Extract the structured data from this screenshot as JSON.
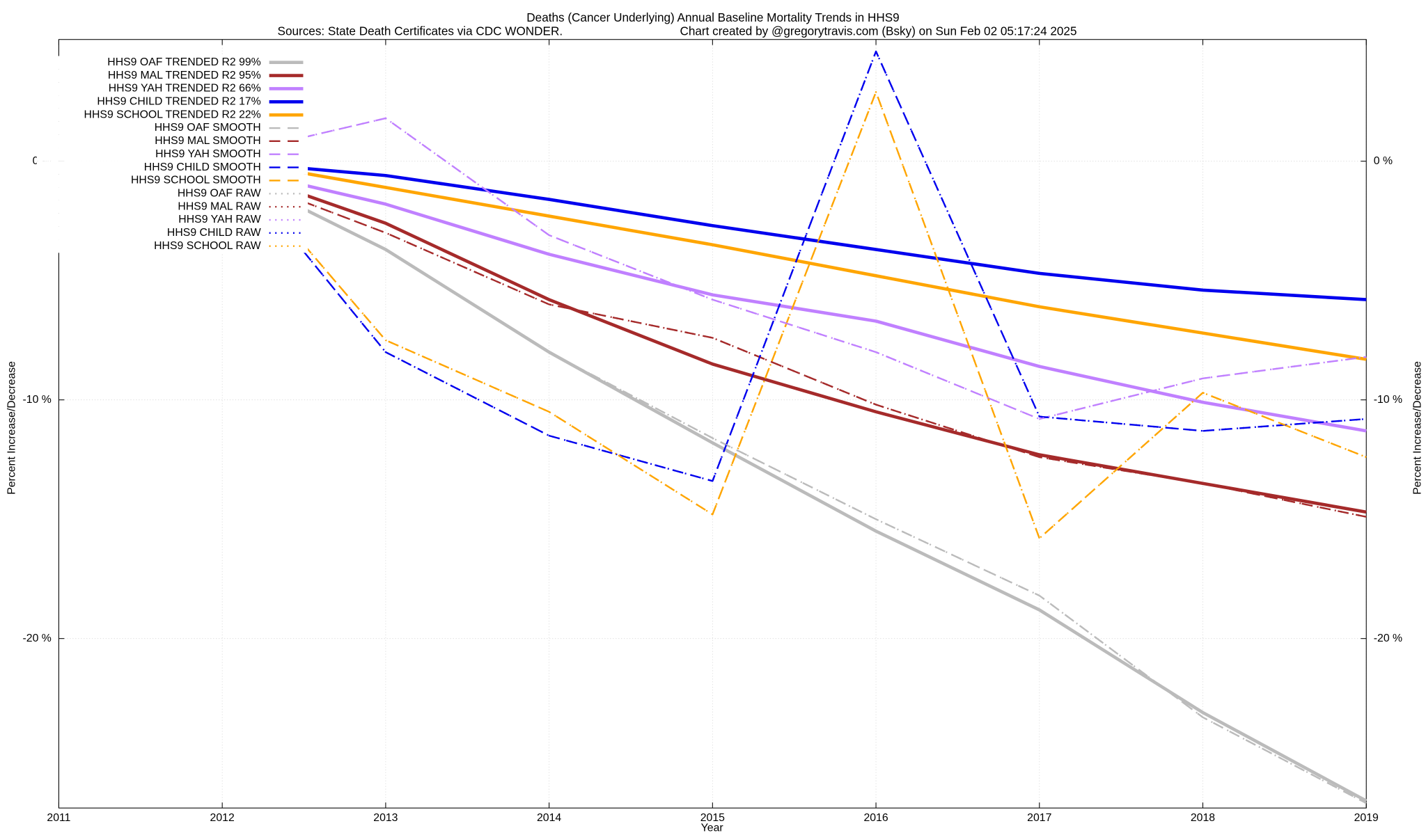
{
  "chart_data": {
    "type": "line",
    "title": "Deaths (Cancer Underlying)  Annual Baseline Mortality Trends in HHS9",
    "subtitle": [
      "Sources: State Death Certificates via CDC WONDER.",
      "Chart created by @gregorytravis.com (Bsky) on Sun Feb 02 05:17:24 2025"
    ],
    "x_label": "Year",
    "y_label": "Percent Increase/Decrease",
    "x": [
      2012.5,
      2013,
      2014,
      2015,
      2016,
      2017,
      2018,
      2019
    ],
    "xlim": [
      2011,
      2019
    ],
    "xticks": [
      2011,
      2012,
      2013,
      2014,
      2015,
      2016,
      2017,
      2018,
      2019
    ],
    "ylim": [
      -27.1,
      5.1
    ],
    "yticks": [
      {
        "value": 0,
        "label": "0 %"
      },
      {
        "value": -10,
        "label": "-10 %"
      },
      {
        "value": -20,
        "label": "-20 %"
      }
    ],
    "grid": true,
    "legend": "top-left",
    "series": [
      {
        "name": "HHS9 OAF TRENDED R2  99%",
        "color": "#bbbbbb",
        "style": "solid",
        "values": [
          -2.0,
          -3.7,
          -8.0,
          -11.8,
          -15.5,
          -18.8,
          -23.1,
          -26.8
        ]
      },
      {
        "name": "HHS9 MAL TRENDED R2  95%",
        "color": "#a52a2a",
        "style": "solid",
        "values": [
          -1.4,
          -2.6,
          -5.8,
          -8.5,
          -10.5,
          -12.3,
          -13.5,
          -14.7
        ]
      },
      {
        "name": "HHS9 YAH TRENDED R2  66%",
        "color": "#c080ff",
        "style": "solid",
        "values": [
          -1.0,
          -1.8,
          -3.9,
          -5.6,
          -6.7,
          -8.6,
          -10.1,
          -11.3
        ]
      },
      {
        "name": "HHS9 CHILD TRENDED R2  17%",
        "color": "#0000ee",
        "style": "solid",
        "values": [
          -0.3,
          -0.6,
          -1.6,
          -2.7,
          -3.7,
          -4.7,
          -5.4,
          -5.8
        ]
      },
      {
        "name": "HHS9 SCHOOL TRENDED R2  22%",
        "color": "#ffa500",
        "style": "solid",
        "values": [
          -0.5,
          -1.1,
          -2.3,
          -3.5,
          -4.8,
          -6.1,
          -7.2,
          -8.3
        ]
      },
      {
        "name": "HHS9 OAF SMOOTH",
        "color": "#bbbbbb",
        "style": "dashed",
        "values": [
          -2.0,
          -3.7,
          -8.0,
          -11.6,
          -15.0,
          -18.2,
          -23.3,
          -26.9
        ]
      },
      {
        "name": "HHS9 MAL SMOOTH",
        "color": "#a52a2a",
        "style": "dashed",
        "values": [
          -1.7,
          -3.0,
          -6.0,
          -7.4,
          -10.2,
          -12.4,
          -13.5,
          -14.9
        ]
      },
      {
        "name": "HHS9 YAH SMOOTH",
        "color": "#c080ff",
        "style": "dashed",
        "values": [
          1.0,
          1.8,
          -3.1,
          -5.8,
          -8.0,
          -10.8,
          -9.1,
          -8.2
        ]
      },
      {
        "name": "HHS9 CHILD SMOOTH",
        "color": "#0000ee",
        "style": "dashed",
        "values": [
          -3.8,
          -8.0,
          -11.5,
          -13.4,
          4.6,
          -10.7,
          -11.3,
          -10.8
        ]
      },
      {
        "name": "HHS9 SCHOOL SMOOTH",
        "color": "#ffa500",
        "style": "dashed",
        "values": [
          -3.5,
          -7.5,
          -10.5,
          -14.8,
          2.9,
          -15.8,
          -9.7,
          -12.4
        ]
      },
      {
        "name": "HHS9 OAF RAW",
        "color": "#bbbbbb",
        "style": "dotted",
        "values": [
          -2.0,
          -3.7,
          -8.0,
          -11.6,
          -15.0,
          -18.2,
          -23.3,
          -26.9
        ]
      },
      {
        "name": "HHS9 MAL RAW",
        "color": "#a52a2a",
        "style": "dotted",
        "values": [
          -1.7,
          -3.0,
          -6.0,
          -7.4,
          -10.2,
          -12.4,
          -13.5,
          -14.9
        ]
      },
      {
        "name": "HHS9 YAH RAW",
        "color": "#c080ff",
        "style": "dotted",
        "values": [
          1.0,
          1.8,
          -3.1,
          -5.8,
          -8.0,
          -10.8,
          -9.1,
          -8.2
        ]
      },
      {
        "name": "HHS9 CHILD RAW",
        "color": "#0000ee",
        "style": "dotted",
        "values": [
          -3.8,
          -8.0,
          -11.5,
          -13.4,
          4.6,
          -10.7,
          -11.3,
          -10.8
        ]
      },
      {
        "name": "HHS9 SCHOOL RAW",
        "color": "#ffa500",
        "style": "dotted",
        "values": [
          -3.5,
          -7.5,
          -10.5,
          -14.8,
          2.9,
          -15.8,
          -9.7,
          -12.4
        ]
      }
    ]
  }
}
